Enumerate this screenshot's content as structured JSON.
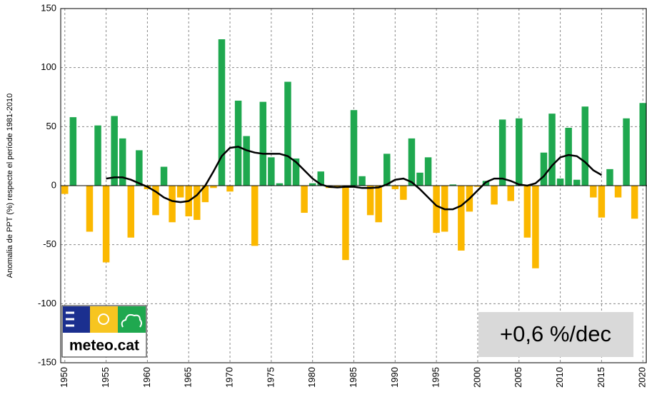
{
  "chart_data": {
    "type": "bar",
    "y_label": "Anomalia de PPT (%) respecte el període 1981-2010",
    "annotation": "+0,6 %/dec",
    "logo_text": "meteo.cat",
    "x": [
      1950,
      1951,
      1952,
      1953,
      1954,
      1955,
      1956,
      1957,
      1958,
      1959,
      1960,
      1961,
      1962,
      1963,
      1964,
      1965,
      1966,
      1967,
      1968,
      1969,
      1970,
      1971,
      1972,
      1973,
      1974,
      1975,
      1976,
      1977,
      1978,
      1979,
      1980,
      1981,
      1982,
      1983,
      1984,
      1985,
      1986,
      1987,
      1988,
      1989,
      1990,
      1991,
      1992,
      1993,
      1994,
      1995,
      1996,
      1997,
      1998,
      1999,
      2000,
      2001,
      2002,
      2003,
      2004,
      2005,
      2006,
      2007,
      2008,
      2009,
      2010,
      2011,
      2012,
      2013,
      2014,
      2015,
      2016,
      2017,
      2018,
      2019,
      2020
    ],
    "values": [
      -7,
      58,
      0,
      -39,
      51,
      -65,
      59,
      40,
      -44,
      30,
      -3,
      -25,
      16,
      -31,
      -10,
      -26,
      -29,
      -14,
      -2,
      124,
      -5,
      72,
      42,
      -51,
      71,
      24,
      2,
      88,
      23,
      -23,
      2,
      12,
      -2,
      -1,
      -63,
      64,
      8,
      -25,
      -31,
      27,
      -3,
      -12,
      40,
      11,
      24,
      -40,
      -39,
      1,
      -55,
      -22,
      -1,
      4,
      -16,
      56,
      -13,
      57,
      -44,
      -70,
      28,
      61,
      6,
      49,
      5,
      67,
      -10,
      -27,
      14,
      -10,
      57,
      -28,
      70
    ],
    "color": "#1fa84f",
    "negative_color": "#fbb800",
    "trend": {
      "color": "#000000",
      "x": [
        1955,
        1956,
        1957,
        1958,
        1959,
        1960,
        1961,
        1962,
        1963,
        1964,
        1965,
        1966,
        1967,
        1968,
        1969,
        1970,
        1971,
        1972,
        1973,
        1974,
        1975,
        1976,
        1977,
        1978,
        1979,
        1980,
        1981,
        1982,
        1983,
        1984,
        1985,
        1986,
        1987,
        1988,
        1989,
        1990,
        1991,
        1992,
        1993,
        1994,
        1995,
        1996,
        1997,
        1998,
        1999,
        2000,
        2001,
        2002,
        2003,
        2004,
        2005,
        2006,
        2007,
        2008,
        2009,
        2010,
        2011,
        2012,
        2013,
        2014,
        2015
      ],
      "values": [
        6,
        7,
        7,
        5,
        2,
        -1,
        -5,
        -10,
        -13,
        -14,
        -13,
        -8,
        0,
        12,
        25,
        32,
        33,
        30,
        28,
        27,
        27,
        27,
        25,
        20,
        13,
        6,
        1,
        -1,
        -1.5,
        -1,
        -1,
        -2,
        -2,
        -1.5,
        1,
        5,
        6,
        3,
        -3,
        -10,
        -17,
        -20,
        -20,
        -17,
        -11,
        -4,
        3,
        6,
        6,
        4,
        1,
        0,
        2,
        8,
        17,
        24,
        26,
        25,
        20,
        13,
        9
      ]
    },
    "xlim": [
      1949.5,
      2020.5
    ],
    "xticks": [
      1950,
      1955,
      1960,
      1965,
      1970,
      1975,
      1980,
      1985,
      1990,
      1995,
      2000,
      2005,
      2010,
      2015,
      2020
    ],
    "ylim": [
      -150,
      150
    ],
    "yticks": [
      -150,
      -100,
      -50,
      0,
      50,
      100,
      150
    ],
    "grid": true
  }
}
